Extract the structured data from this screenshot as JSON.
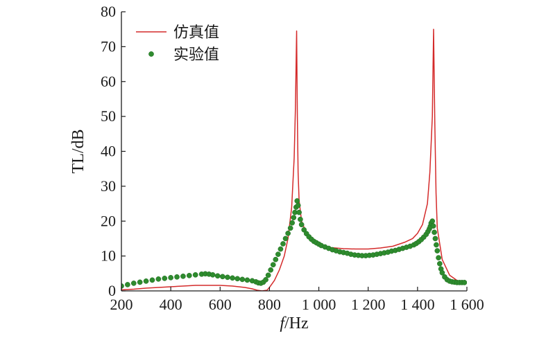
{
  "chart_data": {
    "type": "line",
    "ylabel": "TL/dB",
    "xlabel_italic": "f",
    "xlabel_unit": "/Hz",
    "xlim": [
      200,
      1600
    ],
    "ylim": [
      0,
      80
    ],
    "xticks": [
      {
        "value": 200,
        "label": "200"
      },
      {
        "value": 400,
        "label": "400"
      },
      {
        "value": 600,
        "label": "600"
      },
      {
        "value": 800,
        "label": "800"
      },
      {
        "value": 1000,
        "label": "1 000"
      },
      {
        "value": 1200,
        "label": "1 200"
      },
      {
        "value": 1400,
        "label": "1 400"
      },
      {
        "value": 1600,
        "label": "1 600"
      }
    ],
    "yticks": [
      {
        "value": 0,
        "label": "0"
      },
      {
        "value": 10,
        "label": "10"
      },
      {
        "value": 20,
        "label": "20"
      },
      {
        "value": 30,
        "label": "30"
      },
      {
        "value": 40,
        "label": "40"
      },
      {
        "value": 50,
        "label": "50"
      },
      {
        "value": 60,
        "label": "60"
      },
      {
        "value": 70,
        "label": "70"
      },
      {
        "value": 80,
        "label": "80"
      }
    ],
    "legend_position": "top-left",
    "grid": false,
    "series": [
      {
        "name": "仿真值",
        "style": "line",
        "color": "#d42a2a",
        "x": [
          200,
          250,
          300,
          350,
          400,
          450,
          500,
          550,
          600,
          650,
          700,
          730,
          750,
          770,
          790,
          800,
          820,
          840,
          860,
          875,
          890,
          900,
          905,
          910,
          913,
          916,
          920,
          930,
          950,
          980,
          1000,
          1050,
          1100,
          1150,
          1200,
          1250,
          1300,
          1350,
          1380,
          1400,
          1420,
          1440,
          1450,
          1460,
          1465,
          1470,
          1475,
          1480,
          1500,
          1530,
          1560,
          1590
        ],
        "y": [
          0.3,
          0.5,
          0.8,
          1.0,
          1.2,
          1.4,
          1.6,
          1.6,
          1.6,
          1.4,
          1.0,
          0.6,
          0.2,
          0.0,
          0.2,
          1.0,
          3.0,
          6.0,
          10.0,
          15.0,
          24.0,
          38.0,
          52.0,
          74.5,
          50.0,
          34.0,
          26.0,
          20.0,
          16.5,
          14.0,
          13.2,
          12.4,
          12.1,
          12.0,
          12.0,
          12.3,
          12.8,
          14.0,
          15.0,
          16.5,
          19.0,
          25.0,
          34.0,
          50.0,
          75.0,
          48.0,
          28.0,
          18.0,
          9.0,
          4.5,
          3.0,
          2.5
        ]
      },
      {
        "name": "实验值",
        "style": "scatter",
        "color": "#2e8b2e",
        "x": [
          200,
          225,
          250,
          275,
          300,
          325,
          350,
          375,
          400,
          425,
          450,
          475,
          500,
          525,
          540,
          555,
          570,
          590,
          610,
          630,
          650,
          670,
          690,
          710,
          730,
          745,
          755,
          765,
          775,
          785,
          795,
          805,
          815,
          825,
          835,
          845,
          855,
          865,
          875,
          885,
          892,
          898,
          903,
          908,
          912,
          916,
          920,
          925,
          930,
          940,
          950,
          960,
          970,
          980,
          990,
          1000,
          1010,
          1025,
          1040,
          1055,
          1070,
          1085,
          1100,
          1115,
          1130,
          1145,
          1160,
          1175,
          1190,
          1205,
          1220,
          1235,
          1250,
          1265,
          1280,
          1295,
          1310,
          1325,
          1340,
          1355,
          1370,
          1385,
          1395,
          1405,
          1415,
          1425,
          1435,
          1442,
          1448,
          1452,
          1455,
          1460,
          1464,
          1468,
          1472,
          1476,
          1480,
          1485,
          1490,
          1495,
          1500,
          1510,
          1520,
          1530,
          1540,
          1550,
          1560,
          1570,
          1580,
          1590
        ],
        "y": [
          1.4,
          1.8,
          2.2,
          2.5,
          2.8,
          3.1,
          3.4,
          3.6,
          3.8,
          4.0,
          4.2,
          4.4,
          4.6,
          4.8,
          4.9,
          4.8,
          4.6,
          4.3,
          4.1,
          3.9,
          3.7,
          3.5,
          3.3,
          3.1,
          2.9,
          2.6,
          2.3,
          2.2,
          2.5,
          3.2,
          4.5,
          6.0,
          7.5,
          9.0,
          10.5,
          12.0,
          13.5,
          15.0,
          16.5,
          18.0,
          19.5,
          21.0,
          22.5,
          24.0,
          25.8,
          24.5,
          22.5,
          20.5,
          19.0,
          17.5,
          16.4,
          15.5,
          14.8,
          14.2,
          13.8,
          13.4,
          13.0,
          12.6,
          12.2,
          11.8,
          11.5,
          11.2,
          11.0,
          10.8,
          10.5,
          10.3,
          10.2,
          10.1,
          10.1,
          10.2,
          10.3,
          10.5,
          10.7,
          10.9,
          11.1,
          11.4,
          11.6,
          11.9,
          12.2,
          12.5,
          12.8,
          13.2,
          13.6,
          14.1,
          14.7,
          15.4,
          16.2,
          17.0,
          17.8,
          18.5,
          19.4,
          20.0,
          18.6,
          16.8,
          15.0,
          13.2,
          11.5,
          9.5,
          7.8,
          6.3,
          5.2,
          4.0,
          3.2,
          2.8,
          2.6,
          2.5,
          2.4,
          2.4,
          2.4,
          2.4
        ]
      }
    ]
  }
}
